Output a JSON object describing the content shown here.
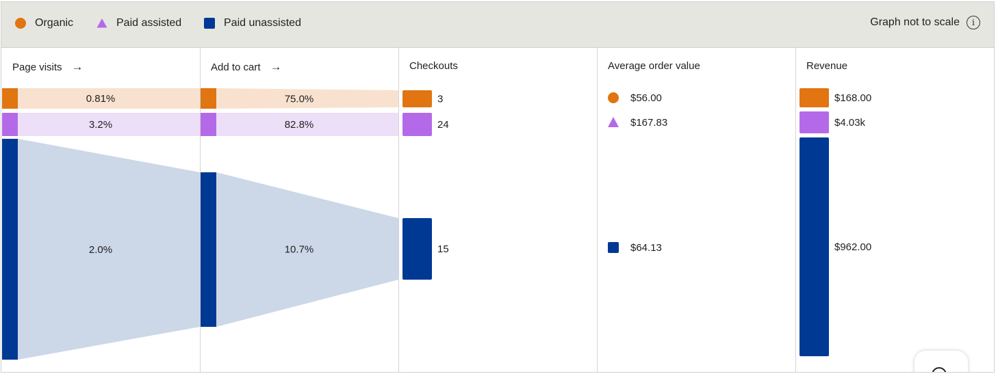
{
  "legend": {
    "items": [
      {
        "label": "Organic",
        "shape": "circle",
        "color": "#e07511"
      },
      {
        "label": "Paid assisted",
        "shape": "triangle",
        "color": "#b46ae8"
      },
      {
        "label": "Paid unassisted",
        "shape": "square",
        "color": "#003994"
      }
    ],
    "note": "Graph not to scale",
    "info_icon": "info-icon"
  },
  "columns": [
    {
      "title": "Page visits",
      "arrow": "→"
    },
    {
      "title": "Add to cart",
      "arrow": "→"
    },
    {
      "title": "Checkouts",
      "arrow": ""
    },
    {
      "title": "Average order value",
      "arrow": ""
    },
    {
      "title": "Revenue",
      "arrow": ""
    }
  ],
  "colors": {
    "organic": "#e07511",
    "organic_band": "#f8e2cf",
    "paid_assisted": "#b46ae8",
    "paid_assisted_band": "#eddff8",
    "paid_unassisted": "#003994",
    "paid_unassisted_band": "#ccd7e8"
  },
  "chart_data": {
    "type": "funnel",
    "scale_note": "Graph not to scale",
    "series": [
      {
        "name": "Organic",
        "page_visits_to_cart": "0.81%",
        "cart_to_checkout": "75.0%",
        "checkouts": 3,
        "average_order_value": "$56.00",
        "revenue": "$168.00"
      },
      {
        "name": "Paid assisted",
        "page_visits_to_cart": "3.2%",
        "cart_to_checkout": "82.8%",
        "checkouts": 24,
        "average_order_value": "$167.83",
        "revenue": "$4.03k"
      },
      {
        "name": "Paid unassisted",
        "page_visits_to_cart": "2.0%",
        "cart_to_checkout": "10.7%",
        "checkouts": 15,
        "average_order_value": "$64.13",
        "revenue": "$962.00"
      }
    ]
  }
}
